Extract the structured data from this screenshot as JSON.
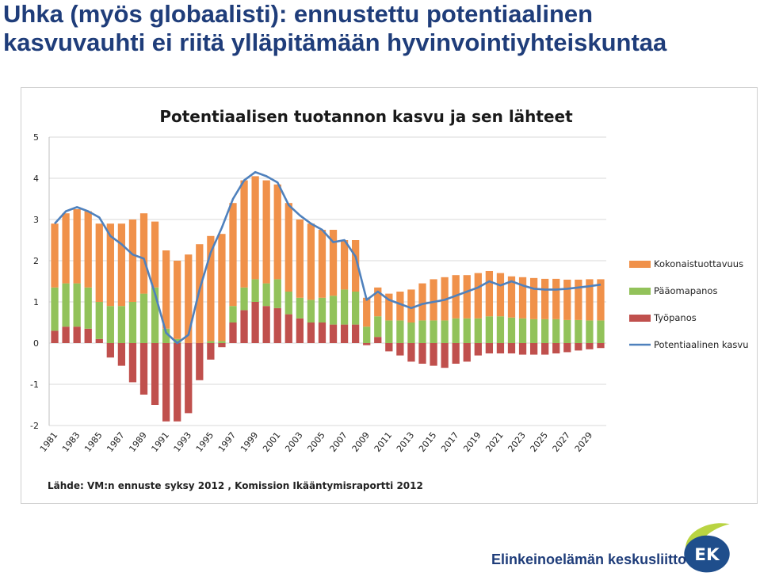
{
  "slide": {
    "title_line1": "Uhka (myös globaalisti): ennustettu potentiaalinen",
    "title_line2": "kasvuvauhti ei riitä ylläpitämään hyvinvointiyhteiskuntaa"
  },
  "footer": {
    "organization": "Elinkeinoelämän keskusliitto",
    "logo_text": "EK"
  },
  "colors": {
    "kokonaistuottavuus": "#f0914a",
    "paaomapanos": "#92c25a",
    "tyopanos": "#c0504d",
    "potentiaalinen_kasvu": "#4f81bd",
    "title": "#1f3d7a"
  },
  "chart_data": {
    "type": "bar",
    "title": "Potentiaalisen tuotannon kasvu ja sen lähteet",
    "source": "Lähde: VM:n ennuste syksy 2012 , Komission Ikääntymisraportti 2012",
    "ylim": [
      -2,
      5
    ],
    "yticks": [
      -2,
      -1,
      0,
      1,
      2,
      3,
      4,
      5
    ],
    "grid": true,
    "legend_position": "right",
    "stacked": true,
    "x": [
      1981,
      1982,
      1983,
      1984,
      1985,
      1986,
      1987,
      1988,
      1989,
      1990,
      1991,
      1992,
      1993,
      1994,
      1995,
      1996,
      1997,
      1998,
      1999,
      2000,
      2001,
      2002,
      2003,
      2004,
      2005,
      2006,
      2007,
      2008,
      2009,
      2010,
      2011,
      2012,
      2013,
      2014,
      2015,
      2016,
      2017,
      2018,
      2019,
      2020,
      2021,
      2022,
      2023,
      2024,
      2025,
      2026,
      2027,
      2028,
      2029,
      2030
    ],
    "x_tick_labels": [
      "1981",
      "1983",
      "1985",
      "1987",
      "1989",
      "1991",
      "1993",
      "1995",
      "1997",
      "1999",
      "2001",
      "2003",
      "2005",
      "2007",
      "2009",
      "2011",
      "2013",
      "2015",
      "2017",
      "2019",
      "2021",
      "2023",
      "2025",
      "2027",
      "2029"
    ],
    "series": [
      {
        "name": "Kokonaistuottavuus",
        "kind": "bar",
        "values": [
          1.55,
          1.7,
          1.8,
          1.85,
          1.9,
          2.0,
          2.0,
          2.0,
          1.95,
          1.6,
          1.9,
          1.9,
          2.15,
          2.4,
          2.55,
          2.6,
          2.5,
          2.6,
          2.5,
          2.5,
          2.3,
          2.15,
          1.9,
          1.85,
          1.65,
          1.6,
          1.2,
          1.25,
          0.7,
          0.7,
          0.65,
          0.7,
          0.8,
          0.9,
          1.0,
          1.05,
          1.05,
          1.05,
          1.1,
          1.1,
          1.05,
          1.0,
          1.0,
          1.0,
          0.98,
          0.98,
          0.98,
          0.98,
          1.0,
          1.0
        ]
      },
      {
        "name": "Pääomapanos",
        "kind": "bar",
        "values": [
          1.05,
          1.05,
          1.05,
          1.0,
          0.9,
          0.9,
          0.9,
          1.0,
          1.2,
          1.35,
          0.35,
          0.1,
          0.0,
          0.0,
          0.05,
          0.05,
          0.4,
          0.55,
          0.55,
          0.55,
          0.7,
          0.55,
          0.5,
          0.55,
          0.6,
          0.7,
          0.85,
          0.8,
          0.4,
          0.5,
          0.55,
          0.55,
          0.5,
          0.55,
          0.55,
          0.55,
          0.6,
          0.6,
          0.6,
          0.65,
          0.65,
          0.62,
          0.6,
          0.58,
          0.58,
          0.58,
          0.56,
          0.56,
          0.55,
          0.55
        ]
      },
      {
        "name": "Työpanos",
        "kind": "bar",
        "values": [
          0.3,
          0.4,
          0.4,
          0.35,
          0.1,
          -0.35,
          -0.55,
          -0.95,
          -1.25,
          -1.5,
          -1.9,
          -1.9,
          -1.7,
          -0.9,
          -0.4,
          -0.1,
          0.5,
          0.8,
          1.0,
          0.9,
          0.85,
          0.7,
          0.6,
          0.5,
          0.5,
          0.45,
          0.45,
          0.45,
          -0.05,
          0.15,
          -0.2,
          -0.3,
          -0.45,
          -0.5,
          -0.55,
          -0.6,
          -0.5,
          -0.45,
          -0.3,
          -0.25,
          -0.25,
          -0.25,
          -0.28,
          -0.28,
          -0.28,
          -0.25,
          -0.22,
          -0.18,
          -0.15,
          -0.12
        ]
      },
      {
        "name": "Potentiaalinen kasvu",
        "kind": "line",
        "values": [
          2.9,
          3.2,
          3.3,
          3.2,
          3.05,
          2.6,
          2.4,
          2.15,
          2.05,
          1.2,
          0.25,
          0.0,
          0.2,
          1.3,
          2.2,
          2.8,
          3.5,
          3.95,
          4.15,
          4.05,
          3.9,
          3.35,
          3.1,
          2.9,
          2.75,
          2.45,
          2.5,
          2.1,
          1.05,
          1.25,
          1.05,
          0.95,
          0.85,
          0.95,
          1.0,
          1.05,
          1.15,
          1.25,
          1.35,
          1.5,
          1.4,
          1.5,
          1.4,
          1.32,
          1.3,
          1.3,
          1.32,
          1.35,
          1.38,
          1.42
        ]
      }
    ]
  }
}
